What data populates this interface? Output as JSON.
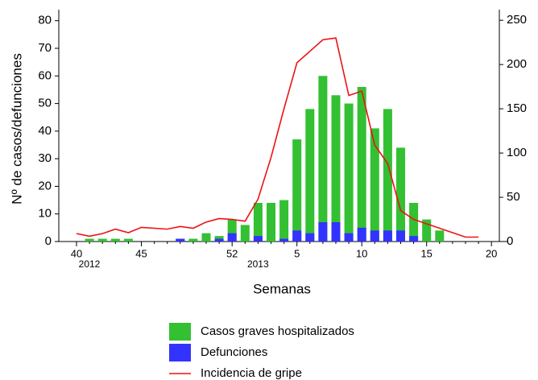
{
  "chart_data": {
    "type": "bar",
    "y_label": "Nº de casos/defunciones",
    "x_label": "Semanas",
    "categories": [
      "40",
      null,
      null,
      null,
      null,
      "45",
      null,
      null,
      null,
      null,
      null,
      null,
      "52",
      null,
      null,
      null,
      null,
      "5",
      null,
      null,
      null,
      null,
      "10",
      null,
      null,
      null,
      null,
      "15",
      null,
      null,
      null,
      null,
      "20"
    ],
    "year_labels": [
      "2012",
      "2013"
    ],
    "series": [
      {
        "name": "Casos graves hospitalizados",
        "color": "#33c033",
        "values": [
          0,
          1,
          1,
          1,
          1,
          0,
          0,
          0,
          1,
          1,
          3,
          2,
          8,
          6,
          14,
          14,
          15,
          37,
          48,
          60,
          53,
          50,
          56,
          41,
          48,
          34,
          14,
          8,
          4,
          0,
          0,
          0,
          0
        ]
      },
      {
        "name": "Defunciones",
        "color": "#3333ff",
        "values": [
          0,
          0,
          0,
          0,
          0,
          0,
          0,
          0,
          1,
          0,
          0,
          1,
          3,
          0,
          2,
          0,
          1,
          4,
          3,
          7,
          7,
          3,
          5,
          4,
          4,
          4,
          2,
          0,
          0,
          0,
          0,
          0,
          0
        ]
      },
      {
        "name": "Incidencia de gripe",
        "color": "#ee1111",
        "type": "line",
        "axis": "y2",
        "values": [
          9,
          6,
          9,
          14,
          10,
          16,
          15,
          14,
          17,
          15,
          22,
          26,
          25,
          23,
          48,
          95,
          150,
          202,
          215,
          228,
          230,
          165,
          170,
          109,
          88,
          35,
          25,
          20,
          15,
          10,
          5,
          5,
          null
        ]
      }
    ],
    "ylim": [
      0,
      84
    ],
    "yticks": [
      0,
      10,
      20,
      30,
      40,
      50,
      60,
      70,
      80
    ],
    "y2lim": [
      0,
      262
    ],
    "y2ticks": [
      0,
      50,
      100,
      150,
      200,
      250
    ]
  }
}
